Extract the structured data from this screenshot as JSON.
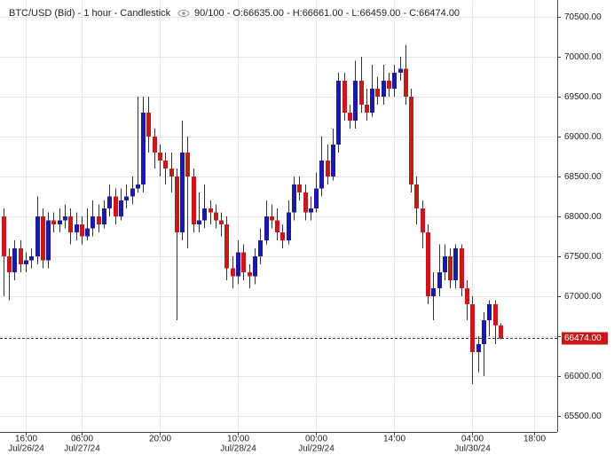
{
  "chart_data": {
    "type": "candlestick",
    "title": "BTC/USD (Bid) - 1 hour - Candlestick",
    "info": "90/100 - O:66635.00 - H:66661.00 - L:66459.00 - C:66474.00",
    "up_color": "#1a1aa6",
    "down_color": "#c41a1a",
    "grid": true,
    "ylim": [
      65300,
      70700
    ],
    "yticks": [
      {
        "value": 65500,
        "label": "65500.00"
      },
      {
        "value": 66000,
        "label": "66000.00"
      },
      {
        "value": 66500,
        "label": "66500.00"
      },
      {
        "value": 67000,
        "label": "67000.00"
      },
      {
        "value": 67500,
        "label": "67500.00"
      },
      {
        "value": 68000,
        "label": "68000.00"
      },
      {
        "value": 68500,
        "label": "68500.00"
      },
      {
        "value": 69000,
        "label": "69000.00"
      },
      {
        "value": 69500,
        "label": "69500.00"
      },
      {
        "value": 70000,
        "label": "70000.00"
      },
      {
        "value": 70500,
        "label": "70500.00"
      }
    ],
    "xlim": [
      -0.6,
      99.2
    ],
    "xticks": [
      {
        "value": 4,
        "label": "16:00",
        "date": "Jul/26/24"
      },
      {
        "value": 14,
        "label": "06:00",
        "date": "Jul/27/24"
      },
      {
        "value": 28,
        "label": "20:00"
      },
      {
        "value": 42,
        "label": "10:00",
        "date": "Jul/28/24"
      },
      {
        "value": 56,
        "label": "00:00",
        "date": "Jul/29/24"
      },
      {
        "value": 70,
        "label": "14:00"
      },
      {
        "value": 84,
        "label": "04:00",
        "date": "Jul/30/24"
      },
      {
        "value": 95,
        "label": "18:00"
      }
    ],
    "last_price": {
      "value": 66474,
      "label": "66474.00"
    },
    "open": [
      68000,
      67500,
      67300,
      67600,
      67400,
      67450,
      67500,
      68000,
      67450,
      67950,
      67900,
      67950,
      68000,
      67800,
      67900,
      67750,
      67850,
      68000,
      67900,
      68100,
      68250,
      68000,
      68200,
      68250,
      68350,
      68400,
      69300,
      69000,
      68800,
      68700,
      68600,
      68500,
      67800,
      68800,
      68500,
      67900,
      67950,
      68100,
      68050,
      67950,
      67900,
      67350,
      67250,
      67550,
      67300,
      67250,
      67500,
      67700,
      68000,
      67950,
      67800,
      67700,
      68050,
      68400,
      68300,
      68050,
      68100,
      68350,
      68700,
      68500,
      68900,
      69700,
      69300,
      69200,
      69700,
      69400,
      69300,
      69600,
      69500,
      69700,
      69600,
      69800,
      69850,
      69500,
      68400,
      68100,
      67800,
      67000,
      67100,
      67300,
      67500,
      67200,
      67600,
      67100,
      66900,
      66300,
      66400,
      66700,
      66900,
      66635
    ],
    "high": [
      68100,
      67600,
      67700,
      67700,
      67550,
      67600,
      68250,
      68100,
      68050,
      68050,
      68100,
      68150,
      68100,
      68050,
      68000,
      68100,
      68200,
      68150,
      68200,
      68400,
      68350,
      68350,
      68400,
      68500,
      69500,
      69500,
      69500,
      69100,
      68900,
      68800,
      68800,
      68600,
      69200,
      69000,
      68600,
      68300,
      68400,
      68200,
      68150,
      68050,
      68000,
      67500,
      67700,
      67650,
      67400,
      67600,
      67850,
      68200,
      68150,
      68100,
      67900,
      68200,
      68500,
      68500,
      68400,
      68250,
      68550,
      69000,
      68900,
      69100,
      69800,
      69800,
      69400,
      69950,
      70000,
      69600,
      69900,
      69750,
      69900,
      69800,
      69900,
      70000,
      70150,
      69600,
      68500,
      68200,
      67900,
      67300,
      67650,
      67650,
      67600,
      67650,
      67650,
      67200,
      67000,
      66500,
      66800,
      66950,
      66950,
      66661
    ],
    "low": [
      67000,
      66950,
      67200,
      67300,
      67300,
      67350,
      67400,
      67350,
      67350,
      67800,
      67800,
      67850,
      67650,
      67700,
      67650,
      67700,
      67750,
      67800,
      67850,
      68000,
      67900,
      67950,
      68100,
      68150,
      68300,
      68300,
      68800,
      68600,
      68500,
      68400,
      68300,
      66700,
      67700,
      67600,
      67800,
      67800,
      67850,
      67900,
      67850,
      67750,
      67200,
      67100,
      67150,
      67200,
      67100,
      67150,
      67400,
      67650,
      67850,
      67700,
      67600,
      67650,
      67950,
      68200,
      67950,
      67950,
      68050,
      68250,
      68400,
      68450,
      68800,
      69200,
      69100,
      69100,
      69300,
      69200,
      69250,
      69400,
      69400,
      69500,
      69500,
      69700,
      69400,
      68300,
      67900,
      67600,
      66900,
      66700,
      67000,
      67200,
      67100,
      67100,
      67000,
      66700,
      65900,
      66050,
      66000,
      66500,
      66400,
      66459
    ],
    "close": [
      67500,
      67300,
      67600,
      67400,
      67450,
      67500,
      68000,
      67450,
      67950,
      67900,
      67950,
      68000,
      67800,
      67900,
      67750,
      67850,
      68000,
      67900,
      68100,
      68250,
      68000,
      68200,
      68250,
      68350,
      68400,
      69300,
      69000,
      68800,
      68700,
      68600,
      68500,
      67800,
      68800,
      68500,
      67900,
      67950,
      68100,
      68050,
      67950,
      67900,
      67350,
      67250,
      67550,
      67300,
      67250,
      67500,
      67700,
      68000,
      67950,
      67800,
      67700,
      68050,
      68400,
      68300,
      68050,
      68100,
      68350,
      68700,
      68500,
      68900,
      69700,
      69300,
      69200,
      69700,
      69400,
      69300,
      69600,
      69500,
      69700,
      69600,
      69800,
      69850,
      69500,
      68400,
      68100,
      67800,
      67000,
      67100,
      67300,
      67500,
      67200,
      67600,
      67100,
      66900,
      66300,
      66400,
      66700,
      66900,
      66635,
      66474
    ]
  }
}
